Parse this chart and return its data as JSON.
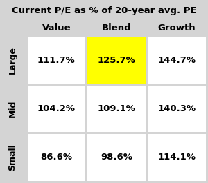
{
  "title": "Current P/E as % of 20-year avg. PE",
  "col_headers": [
    "Value",
    "Blend",
    "Growth"
  ],
  "row_headers": [
    "Large",
    "Mid",
    "Small"
  ],
  "values": [
    [
      "111.7%",
      "125.7%",
      "144.7%"
    ],
    [
      "104.2%",
      "109.1%",
      "140.3%"
    ],
    [
      "86.6%",
      "98.6%",
      "114.1%"
    ]
  ],
  "highlight_cell": [
    0,
    1
  ],
  "highlight_color": "#FFFF00",
  "cell_bg": "#FFFFFF",
  "bg_color": "#D4D4D4",
  "title_fontsize": 9.5,
  "header_fontsize": 9.5,
  "cell_fontsize": 9.5,
  "row_header_fontsize": 9.0,
  "text_color": "#000000"
}
